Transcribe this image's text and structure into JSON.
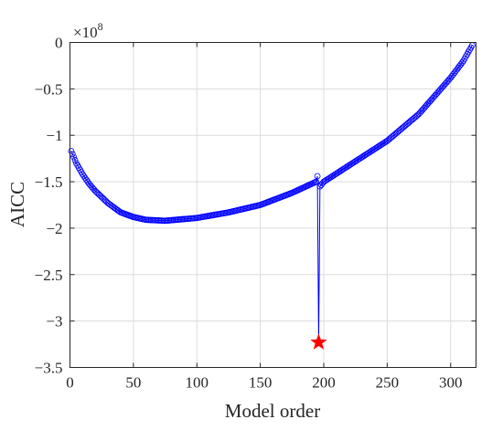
{
  "chart_data": {
    "type": "line",
    "xlabel": "Model order",
    "ylabel": "AICC",
    "y_multiplier_label": "×10",
    "y_multiplier_exponent": "8",
    "xlim": [
      0,
      320
    ],
    "ylim": [
      -3.5,
      0
    ],
    "y_scale_factor": 100000000,
    "grid": true,
    "x_ticks": [
      0,
      50,
      100,
      150,
      200,
      250,
      300
    ],
    "x_tick_labels": [
      "0",
      "50",
      "100",
      "150",
      "200",
      "250",
      "300"
    ],
    "y_ticks": [
      0,
      -0.5,
      -1,
      -1.5,
      -2,
      -2.5,
      -3,
      -3.5
    ],
    "y_tick_labels": [
      "0",
      "−0.5",
      "−1",
      "−1.5",
      "−2",
      "−2.5",
      "−3",
      "−3.5"
    ],
    "series": [
      {
        "marker": "circle",
        "color": "#0000ff",
        "x_start": 1,
        "x_end": 317,
        "x_step": 1,
        "control_points": {
          "x": [
            1,
            5,
            10,
            15,
            20,
            30,
            40,
            50,
            60,
            75,
            100,
            125,
            150,
            175,
            194,
            195,
            196,
            197,
            200,
            225,
            250,
            275,
            300,
            310,
            317
          ],
          "y": [
            -1.17,
            -1.3,
            -1.42,
            -1.52,
            -1.6,
            -1.73,
            -1.83,
            -1.88,
            -1.91,
            -1.92,
            -1.89,
            -1.83,
            -1.75,
            -1.62,
            -1.5,
            -1.44,
            -3.23,
            -1.55,
            -1.5,
            -1.28,
            -1.06,
            -0.77,
            -0.38,
            -0.2,
            -0.03
          ]
        }
      }
    ],
    "highlight": {
      "marker": "star",
      "color": "#ff0000",
      "x": 196,
      "y": -3.23
    }
  }
}
